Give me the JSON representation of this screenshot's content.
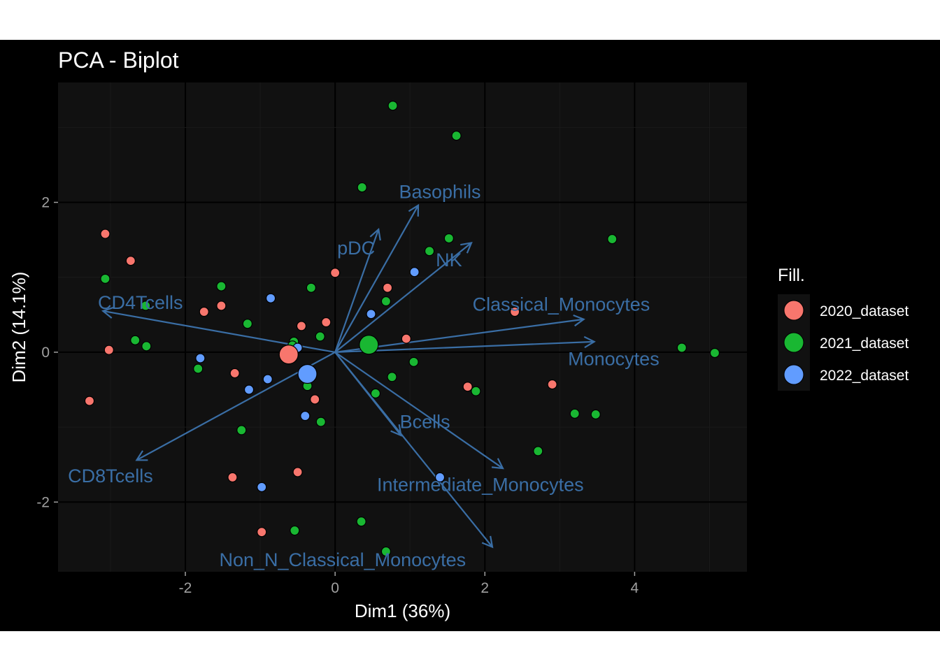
{
  "chart_data": {
    "type": "scatter",
    "title": "PCA - Biplot",
    "xlabel": "Dim1 (36%)",
    "ylabel": "Dim2 (14.1%)",
    "xlim": [
      -3.7,
      5.5
    ],
    "ylim": [
      -2.93,
      3.6
    ],
    "xticks": [
      -2,
      0,
      2,
      4
    ],
    "yticks": [
      -2,
      0,
      2
    ],
    "xtick_labels": [
      "-2",
      "0",
      "2",
      "4"
    ],
    "ytick_labels": [
      "-2",
      "0",
      "2"
    ],
    "grid": true,
    "legend": {
      "title": "Fill.",
      "position": "right"
    },
    "colors": {
      "background": "#000000",
      "panel": "#111111",
      "grid_major": "#000000",
      "grid_minor": "#1a1a1a",
      "arrow": "#3a6ea5"
    },
    "series": [
      {
        "name": "2020_dataset",
        "color": "#f8766d",
        "centroid": [
          -0.62,
          -0.03
        ],
        "points": [
          [
            -3.07,
            1.58
          ],
          [
            -2.73,
            1.22
          ],
          [
            -3.02,
            0.03
          ],
          [
            -3.28,
            -0.65
          ],
          [
            -1.75,
            0.54
          ],
          [
            -1.52,
            0.62
          ],
          [
            -1.34,
            -0.28
          ],
          [
            -1.37,
            -1.67
          ],
          [
            -0.98,
            -2.4
          ],
          [
            -0.45,
            0.35
          ],
          [
            -0.12,
            0.4
          ],
          [
            0.0,
            1.06
          ],
          [
            -0.27,
            -0.63
          ],
          [
            -0.5,
            -1.6
          ],
          [
            0.7,
            0.86
          ],
          [
            0.95,
            0.18
          ],
          [
            1.77,
            -0.46
          ],
          [
            2.4,
            0.54
          ],
          [
            2.9,
            -0.43
          ]
        ]
      },
      {
        "name": "2021_dataset",
        "color": "#19b732",
        "centroid": [
          0.45,
          0.1
        ],
        "points": [
          [
            0.77,
            3.29
          ],
          [
            1.62,
            2.89
          ],
          [
            0.36,
            2.2
          ],
          [
            1.52,
            1.52
          ],
          [
            1.26,
            1.35
          ],
          [
            3.7,
            1.51
          ],
          [
            -3.07,
            0.98
          ],
          [
            -1.52,
            0.88
          ],
          [
            -0.32,
            0.86
          ],
          [
            -2.53,
            0.62
          ],
          [
            0.68,
            0.68
          ],
          [
            -2.67,
            0.16
          ],
          [
            -2.52,
            0.08
          ],
          [
            -1.17,
            0.38
          ],
          [
            -0.2,
            0.21
          ],
          [
            -0.55,
            0.14
          ],
          [
            -0.57,
            0.09
          ],
          [
            1.05,
            -0.13
          ],
          [
            0.76,
            -0.33
          ],
          [
            0.54,
            -0.55
          ],
          [
            1.88,
            -0.52
          ],
          [
            -1.83,
            -0.22
          ],
          [
            -0.37,
            -0.45
          ],
          [
            -0.19,
            -0.93
          ],
          [
            -1.25,
            -1.04
          ],
          [
            2.71,
            -1.32
          ],
          [
            3.2,
            -0.82
          ],
          [
            3.48,
            -0.83
          ],
          [
            4.63,
            0.06
          ],
          [
            5.07,
            -0.01
          ],
          [
            0.35,
            -2.26
          ],
          [
            -0.54,
            -2.38
          ],
          [
            0.68,
            -2.66
          ]
        ]
      },
      {
        "name": "2022_dataset",
        "color": "#619cff",
        "centroid": [
          -0.37,
          -0.29
        ],
        "points": [
          [
            1.06,
            1.07
          ],
          [
            -0.86,
            0.72
          ],
          [
            0.48,
            0.51
          ],
          [
            -0.5,
            0.06
          ],
          [
            -1.8,
            -0.08
          ],
          [
            -0.9,
            -0.36
          ],
          [
            -1.15,
            -0.5
          ],
          [
            -0.4,
            -0.85
          ],
          [
            1.4,
            -1.67
          ],
          [
            -0.98,
            -1.8
          ]
        ]
      }
    ],
    "variables": [
      {
        "name": "Basophils",
        "vector": [
          1.11,
          1.96
        ],
        "label_pos": [
          1.4,
          2.14
        ]
      },
      {
        "name": "pDC",
        "vector": [
          0.58,
          1.64
        ],
        "label_pos": [
          0.28,
          1.39
        ]
      },
      {
        "name": "NK",
        "vector": [
          1.82,
          1.46
        ],
        "label_pos": [
          1.52,
          1.23
        ]
      },
      {
        "name": "Classical_Monocytes",
        "vector": [
          3.32,
          0.44
        ],
        "label_pos": [
          3.02,
          0.64
        ]
      },
      {
        "name": "Monocytes",
        "vector": [
          3.46,
          0.14
        ],
        "label_pos": [
          3.72,
          -0.09
        ]
      },
      {
        "name": "CD4Tcells",
        "vector": [
          -3.1,
          0.55
        ],
        "label_pos": [
          -2.6,
          0.66
        ]
      },
      {
        "name": "CD8Tcells",
        "vector": [
          -2.65,
          -1.44
        ],
        "label_pos": [
          -3.0,
          -1.65
        ]
      },
      {
        "name": "Bcells",
        "vector": [
          0.88,
          -1.11
        ],
        "label_pos": [
          1.2,
          -0.93
        ]
      },
      {
        "name": "Intermediate_Monocytes",
        "vector": [
          2.24,
          -1.55
        ],
        "label_pos": [
          1.94,
          -1.77
        ]
      },
      {
        "name": "Non_N_Classical_Monocytes",
        "vector": [
          2.1,
          -2.6
        ],
        "label_pos": [
          0.1,
          -2.77
        ]
      }
    ]
  }
}
